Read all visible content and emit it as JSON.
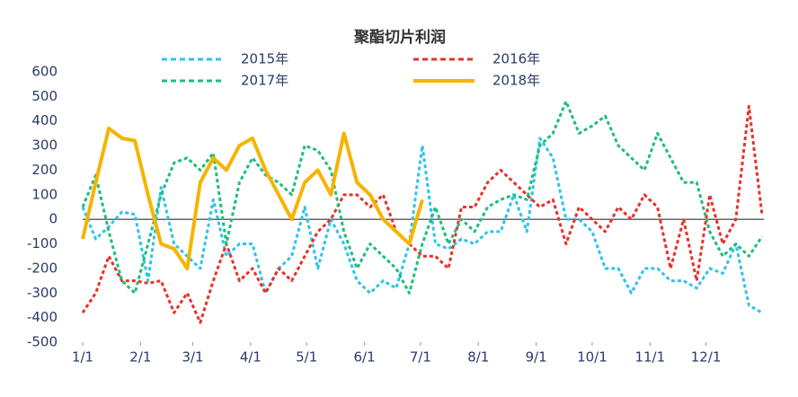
{
  "chart_data": {
    "type": "line",
    "title": "聚酯切片利润",
    "x": [
      0,
      7,
      14,
      21,
      28,
      35,
      42,
      49,
      56,
      63,
      70,
      77,
      84,
      91,
      98,
      105,
      112,
      119,
      126,
      133,
      140,
      147,
      154,
      161,
      168,
      175,
      182,
      189,
      196,
      203,
      210,
      217,
      224,
      231,
      238,
      245,
      252,
      259,
      266,
      273,
      280,
      287,
      294,
      301,
      308,
      315,
      322,
      329,
      336,
      343,
      350,
      357,
      364
    ],
    "xlim": [
      0,
      365
    ],
    "xticks": [
      {
        "value": 0,
        "label": "1/1"
      },
      {
        "value": 31,
        "label": "2/1"
      },
      {
        "value": 59,
        "label": "3/1"
      },
      {
        "value": 90,
        "label": "4/1"
      },
      {
        "value": 120,
        "label": "5/1"
      },
      {
        "value": 151,
        "label": "6/1"
      },
      {
        "value": 181,
        "label": "7/1"
      },
      {
        "value": 212,
        "label": "8/1"
      },
      {
        "value": 243,
        "label": "9/1"
      },
      {
        "value": 273,
        "label": "10/1"
      },
      {
        "value": 304,
        "label": "11/1"
      },
      {
        "value": 334,
        "label": "12/1"
      }
    ],
    "ylim": [
      -500,
      600
    ],
    "yticks": [
      -500,
      -400,
      -300,
      -200,
      -100,
      0,
      100,
      200,
      300,
      400,
      500,
      600
    ],
    "legend": "top",
    "series": [
      {
        "name": "2015年",
        "color": "#2ec4e8",
        "dashed": true,
        "values": [
          50,
          -80,
          -30,
          30,
          20,
          -250,
          130,
          -100,
          -150,
          -200,
          80,
          -150,
          -100,
          -100,
          -300,
          -200,
          -150,
          50,
          -200,
          0,
          -100,
          -250,
          -300,
          -250,
          -280,
          -100,
          300,
          -100,
          -120,
          -80,
          -100,
          -50,
          -50,
          100,
          -50,
          330,
          250,
          0,
          0,
          -50,
          -200,
          -200,
          -300,
          -200,
          -200,
          -250,
          -250,
          -280,
          -200,
          -220,
          -100,
          -350,
          -380
        ]
      },
      {
        "name": "2016年",
        "color": "#e5322b",
        "dashed": true,
        "values": [
          -380,
          -300,
          -150,
          -250,
          -250,
          -260,
          -250,
          -380,
          -300,
          -420,
          -250,
          -100,
          -250,
          -200,
          -300,
          -200,
          -250,
          -150,
          -50,
          0,
          100,
          100,
          50,
          100,
          -50,
          -100,
          -150,
          -150,
          -200,
          50,
          50,
          150,
          200,
          150,
          100,
          50,
          80,
          -100,
          50,
          0,
          -50,
          50,
          0,
          100,
          50,
          -200,
          0,
          -250,
          100,
          -100,
          0,
          460,
          20
        ]
      },
      {
        "name": "2017年",
        "color": "#1fbd7c",
        "dashed": true,
        "values": [
          50,
          180,
          -50,
          -250,
          -300,
          -100,
          100,
          230,
          250,
          200,
          270,
          -100,
          150,
          250,
          180,
          150,
          100,
          300,
          280,
          200,
          -50,
          -200,
          -100,
          -150,
          -200,
          -300,
          -100,
          50,
          -100,
          0,
          -50,
          50,
          80,
          100,
          80,
          300,
          350,
          480,
          350,
          380,
          420,
          300,
          250,
          200,
          350,
          250,
          150,
          150,
          -50,
          -150,
          -100,
          -150,
          -70
        ]
      },
      {
        "name": "2018年",
        "color": "#f5b400",
        "dashed": false,
        "values": [
          -80,
          150,
          370,
          330,
          320,
          100,
          -100,
          -120,
          -200,
          150,
          250,
          200,
          300,
          330,
          200,
          100,
          0,
          150,
          200,
          100,
          350,
          150,
          100,
          0,
          -50,
          -100,
          80,
          null,
          null,
          null,
          null,
          null,
          null,
          null,
          null,
          null,
          null,
          null,
          null,
          null,
          null,
          null,
          null,
          null,
          null,
          null,
          null,
          null,
          null,
          null,
          null,
          null,
          null
        ]
      }
    ]
  }
}
